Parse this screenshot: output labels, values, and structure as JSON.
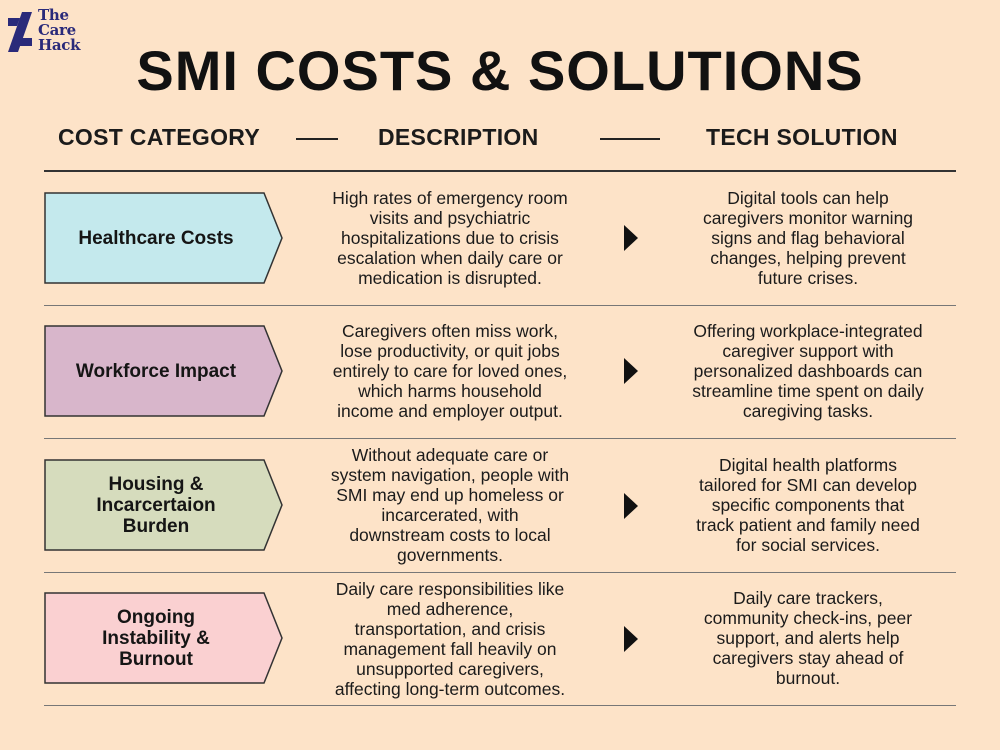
{
  "brand": {
    "logo_text": "The\nCare\nHack"
  },
  "title": "SMI COSTS & SOLUTIONS",
  "headers": {
    "cost": "COST CATEGORY",
    "description": "DESCRIPTION",
    "solution": "TECH SOLUTION"
  },
  "rows": [
    {
      "category": "Healthcare Costs",
      "color": "#c4e9ed",
      "description": "High rates of emergency room\nvisits and psychiatric\nhospitalizations due to crisis\nescalation when daily care or\nmedication is disrupted.",
      "solution": "Digital tools can help\ncaregivers monitor warning\nsigns and flag behavioral\nchanges, helping prevent\nfuture crises."
    },
    {
      "category": "Workforce Impact",
      "color": "#d8b6cb",
      "description": "Caregivers often miss work,\nlose productivity, or quit jobs\nentirely to care for loved ones,\nwhich harms household\nincome and employer output.",
      "solution": "Offering workplace-integrated\ncaregiver support with\npersonalized dashboards can\nstreamline time spent on daily\ncaregiving tasks."
    },
    {
      "category": "Housing &\nIncarcertaion\nBurden",
      "color": "#d6dcbd",
      "description": "Without adequate care or\nsystem navigation, people with\nSMI may end up homeless or\nincarcerated, with\ndownstream costs to local\ngovernments.",
      "solution": "Digital health platforms\ntailored for SMI can develop\nspecific components that\ntrack patient and family need\nfor social services."
    },
    {
      "category": "Ongoing\nInstability &\nBurnout",
      "color": "#fad0d1",
      "description": "Daily care responsibilities like\nmed adherence,\ntransportation, and crisis\nmanagement fall heavily on\nunsupported caregivers,\naffecting long-term outcomes.",
      "solution": "Daily care trackers,\ncommunity check-ins, peer\nsupport, and alerts help\ncaregivers stay ahead of\nburnout."
    }
  ]
}
